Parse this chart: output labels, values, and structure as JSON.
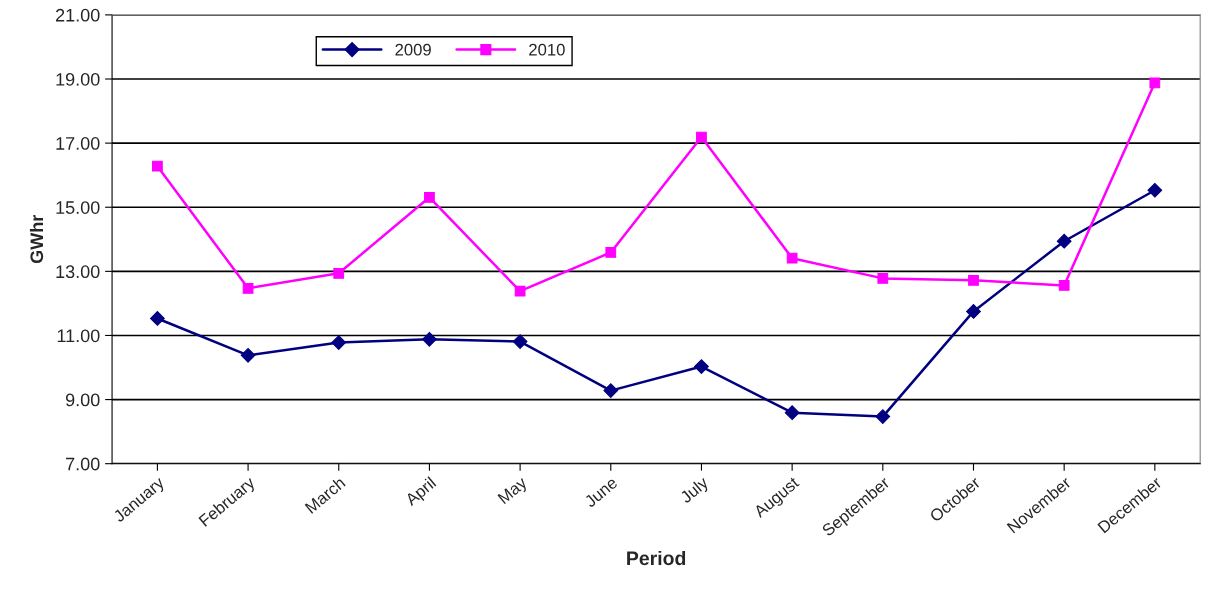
{
  "chart_data": {
    "type": "line",
    "xlabel": "Period",
    "ylabel": "GWhr",
    "categories": [
      "January",
      "February",
      "March",
      "April",
      "May",
      "June",
      "July",
      "August",
      "September",
      "October",
      "November",
      "December"
    ],
    "series": [
      {
        "name": "2009",
        "color": "#000080",
        "marker": "diamond",
        "values": [
          11.53,
          10.38,
          10.78,
          10.88,
          10.81,
          9.28,
          10.03,
          8.59,
          8.47,
          11.75,
          13.94,
          15.53
        ]
      },
      {
        "name": "2010",
        "color": "#ff00ff",
        "marker": "square",
        "values": [
          16.28,
          12.47,
          12.94,
          15.31,
          12.38,
          13.59,
          17.19,
          13.41,
          12.78,
          12.72,
          12.56,
          18.88
        ]
      }
    ],
    "ylim": [
      7,
      21
    ],
    "yticks": [
      {
        "value": 7,
        "label": "7.00"
      },
      {
        "value": 9,
        "label": "9.00"
      },
      {
        "value": 11,
        "label": "11.00"
      },
      {
        "value": 13,
        "label": "13.00"
      },
      {
        "value": 15,
        "label": "15.00"
      },
      {
        "value": 17,
        "label": "17.00"
      },
      {
        "value": 19,
        "label": "19.00"
      },
      {
        "value": 21,
        "label": "21.00"
      }
    ],
    "grid": "y",
    "legend": "top left"
  }
}
